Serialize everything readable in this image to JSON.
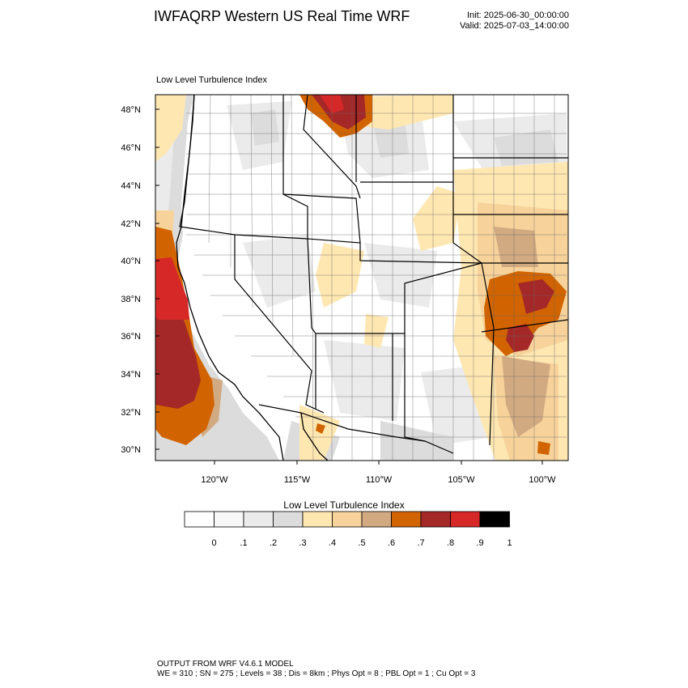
{
  "header": {
    "title": "IWFAQRP Western US Real Time WRF",
    "init": "Init: 2025-06-30_00:00:00",
    "valid": "Valid: 2025-07-03_14:00:00"
  },
  "map": {
    "label": "Low Level Turbulence Index",
    "lat_ticks": [
      "48°N",
      "46°N",
      "44°N",
      "42°N",
      "40°N",
      "38°N",
      "36°N",
      "34°N",
      "32°N",
      "30°N"
    ],
    "lon_ticks": [
      "120°W",
      "115°W",
      "110°W",
      "105°W",
      "100°W"
    ]
  },
  "colorbar": {
    "title": "Low Level Turbulence Index",
    "labels": [
      "0",
      ".1",
      ".2",
      ".3",
      ".4",
      ".5",
      ".6",
      ".7",
      ".8",
      ".9",
      "1"
    ],
    "colors": [
      "#ffffff",
      "#f7f7f7",
      "#ebebeb",
      "#dcdcdc",
      "#ffe7b2",
      "#f7d39b",
      "#d2aa82",
      "#d26400",
      "#a52828",
      "#d72828",
      "#000000"
    ]
  },
  "footer": {
    "line1": "OUTPUT FROM WRF V4.6.1 MODEL",
    "line2": "WE = 310 ; SN = 275 ; Levels = 38 ; Dis = 8km ; Phys Opt = 8 ; PBL Opt = 1 ; Cu Opt = 3"
  }
}
